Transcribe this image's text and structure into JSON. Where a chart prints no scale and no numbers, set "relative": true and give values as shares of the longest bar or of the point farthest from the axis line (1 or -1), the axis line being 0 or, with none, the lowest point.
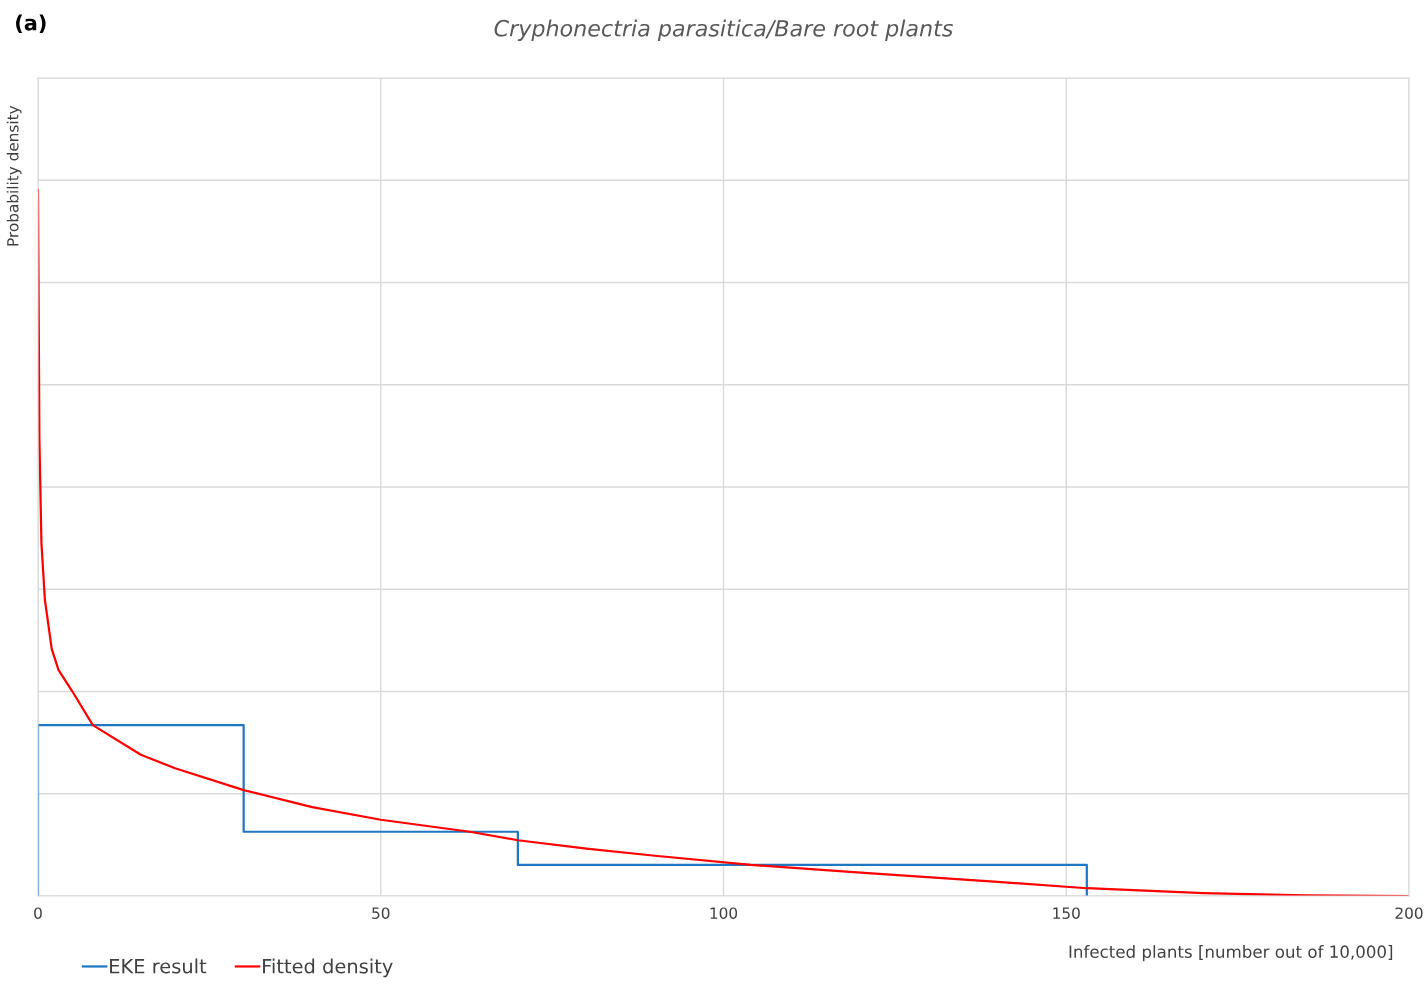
{
  "chart_data": {
    "type": "line",
    "title": "Cryphonectria parasitica/Bare root plants",
    "xlabel": "Infected plants [number out of 10,000]",
    "ylabel": "Probability density",
    "annotations": [
      "(a)"
    ],
    "relative": true,
    "xlim": [
      0,
      200
    ],
    "xticks": [
      0,
      50,
      100,
      150,
      200
    ],
    "grid": true,
    "legend": "bottom left",
    "marker": "none",
    "line_style": "solid",
    "series": [
      {
        "name": "EKE result",
        "color": "#1f77c4",
        "x": [
          0,
          0,
          30,
          30,
          70,
          70,
          153,
          153
        ],
        "values": [
          0,
          0.242,
          0.242,
          0.091,
          0.091,
          0.044,
          0.044,
          0
        ]
      },
      {
        "name": "Fitted density",
        "color": "#ff0000",
        "x": [
          0,
          0.2,
          0.5,
          1,
          2,
          3,
          5,
          8,
          15,
          20,
          30,
          40,
          50,
          63,
          70,
          80,
          90,
          104,
          120,
          140,
          153,
          170,
          185,
          200
        ],
        "values": [
          1,
          0.65,
          0.5,
          0.42,
          0.35,
          0.32,
          0.29,
          0.242,
          0.2,
          0.181,
          0.15,
          0.126,
          0.108,
          0.091,
          0.079,
          0.067,
          0.057,
          0.044,
          0.033,
          0.02,
          0.011,
          0.004,
          0.001,
          0
        ]
      }
    ]
  }
}
